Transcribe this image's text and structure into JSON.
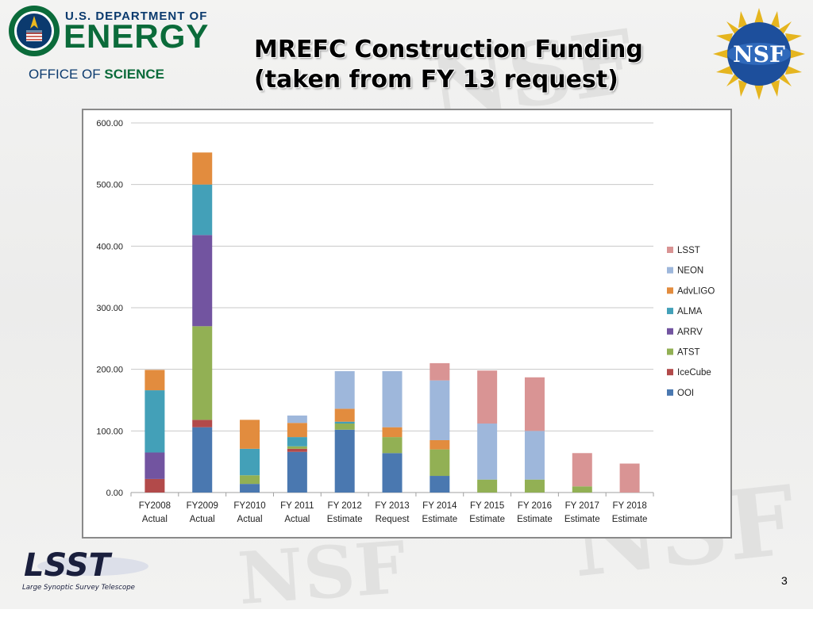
{
  "header": {
    "doe_line1": "U.S. DEPARTMENT OF",
    "doe_line2": "ENERGY",
    "doe_office_prefix": "OFFICE OF",
    "doe_office_bold": "SCIENCE",
    "title_line1": "MREFC Construction Funding",
    "title_line2": "(taken from FY 13 request)",
    "nsf_logo_text": "NSF"
  },
  "footer": {
    "lsst_wordmark": "LSST",
    "lsst_tagline": "Large Synoptic Survey Telescope",
    "page_number": "3"
  },
  "chart_data": {
    "type": "bar",
    "stacked": true,
    "categories": [
      [
        "FY2008",
        "Actual"
      ],
      [
        "FY2009",
        "Actual"
      ],
      [
        "FY2010",
        "Actual"
      ],
      [
        "FY 2011",
        "Actual"
      ],
      [
        "FY 2012",
        "Estimate"
      ],
      [
        "FY 2013",
        "Request"
      ],
      [
        "FY 2014",
        "Estimate"
      ],
      [
        "FY 2015",
        "Estimate"
      ],
      [
        "FY 2016",
        "Estimate"
      ],
      [
        "FY 2017",
        "Estimate"
      ],
      [
        "FY 2018",
        "Estimate"
      ]
    ],
    "ylim": [
      0,
      600
    ],
    "yticks": [
      0,
      100,
      200,
      300,
      400,
      500,
      600
    ],
    "ytick_labels": [
      "0.00",
      "100.00",
      "200.00",
      "300.00",
      "400.00",
      "500.00",
      "600.00"
    ],
    "grid": true,
    "legend_position": "right",
    "series": [
      {
        "name": "OOI",
        "color": "#4a78b0",
        "values": [
          0,
          106,
          14,
          66,
          102,
          64,
          27,
          0,
          0,
          0,
          0
        ]
      },
      {
        "name": "IceCube",
        "color": "#b24a4a",
        "values": [
          22,
          12,
          0,
          5,
          0,
          0,
          0,
          0,
          0,
          0,
          0
        ]
      },
      {
        "name": "ATST",
        "color": "#92b054",
        "values": [
          0,
          152,
          14,
          4,
          10,
          26,
          43,
          21,
          21,
          10,
          0
        ]
      },
      {
        "name": "ARRV",
        "color": "#7254a0",
        "values": [
          43,
          148,
          0,
          0,
          0,
          0,
          0,
          0,
          0,
          0,
          0
        ]
      },
      {
        "name": "ALMA",
        "color": "#43a0b8",
        "values": [
          101,
          82,
          43,
          15,
          3,
          0,
          0,
          0,
          0,
          0,
          0
        ]
      },
      {
        "name": "AdvLIGO",
        "color": "#e28c3e",
        "values": [
          33,
          52,
          47,
          23,
          21,
          16,
          15,
          0,
          0,
          0,
          0
        ]
      },
      {
        "name": "NEON",
        "color": "#9eb7db",
        "values": [
          0,
          0,
          0,
          12,
          61,
          91,
          97,
          91,
          79,
          0,
          0
        ]
      },
      {
        "name": "LSST",
        "color": "#d99494",
        "values": [
          0,
          0,
          0,
          0,
          0,
          0,
          28,
          86,
          87,
          54,
          47
        ]
      }
    ]
  }
}
